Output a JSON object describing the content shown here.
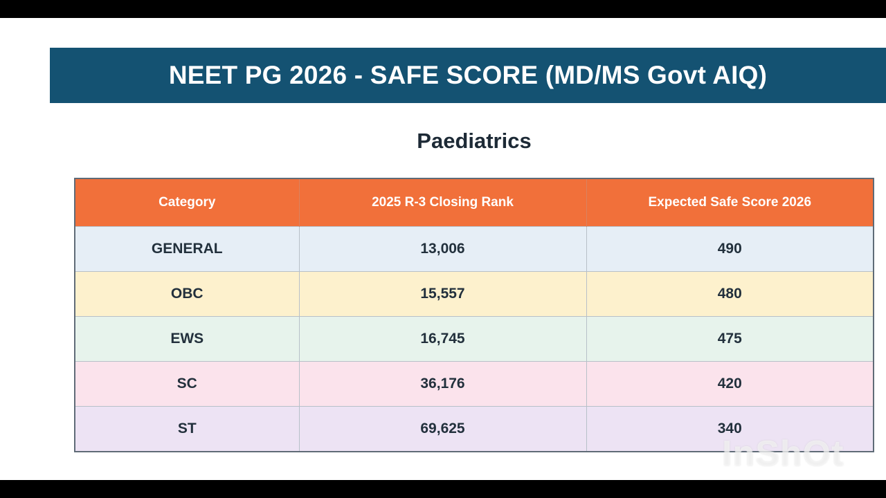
{
  "banner": {
    "title": "NEET PG 2026 - SAFE SCORE (MD/MS Govt AIQ)"
  },
  "subject": "Paediatrics",
  "table": {
    "headers": [
      "Category",
      "2025 R-3 Closing Rank",
      "Expected Safe Score 2026"
    ],
    "rows": [
      {
        "category": "GENERAL",
        "closing_rank": "13,006",
        "safe_score": "490"
      },
      {
        "category": "OBC",
        "closing_rank": "15,557",
        "safe_score": "480"
      },
      {
        "category": "EWS",
        "closing_rank": "16,745",
        "safe_score": "475"
      },
      {
        "category": "SC",
        "closing_rank": "36,176",
        "safe_score": "420"
      },
      {
        "category": "ST",
        "closing_rank": "69,625",
        "safe_score": "340"
      }
    ]
  },
  "watermark": "InShOt",
  "colors": {
    "banner": "#145272",
    "header": "#f1703a",
    "general_row": "#e6eef6",
    "obc_row": "#fdf1cd",
    "ews_row": "#e7f3ec",
    "sc_row": "#fbe3ec",
    "st_row": "#ede3f4"
  }
}
